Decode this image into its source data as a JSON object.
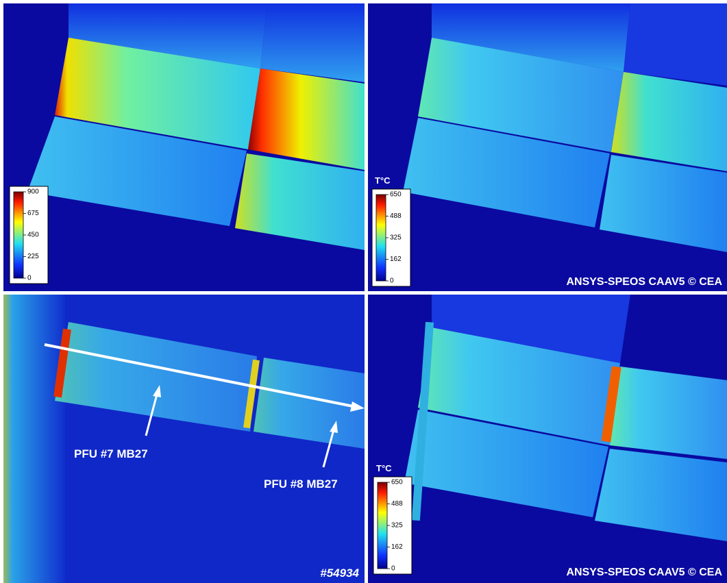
{
  "panels": [
    {
      "colorbar": {
        "ticks": [
          900,
          675,
          450,
          225,
          0
        ]
      }
    },
    {
      "colorbar": {
        "unit": "T°C",
        "ticks": [
          650,
          488,
          325,
          162,
          0
        ]
      },
      "credit": "ANSYS-SPEOS CAAV5 © CEA"
    },
    {
      "labels": [
        "PFU #7 MB27",
        "PFU #8 MB27"
      ],
      "shot": "#54934"
    },
    {
      "colorbar": {
        "unit": "T°C",
        "ticks": [
          650,
          488,
          325,
          162,
          0
        ]
      },
      "credit": "ANSYS-SPEOS CAAV5 © CEA"
    }
  ]
}
